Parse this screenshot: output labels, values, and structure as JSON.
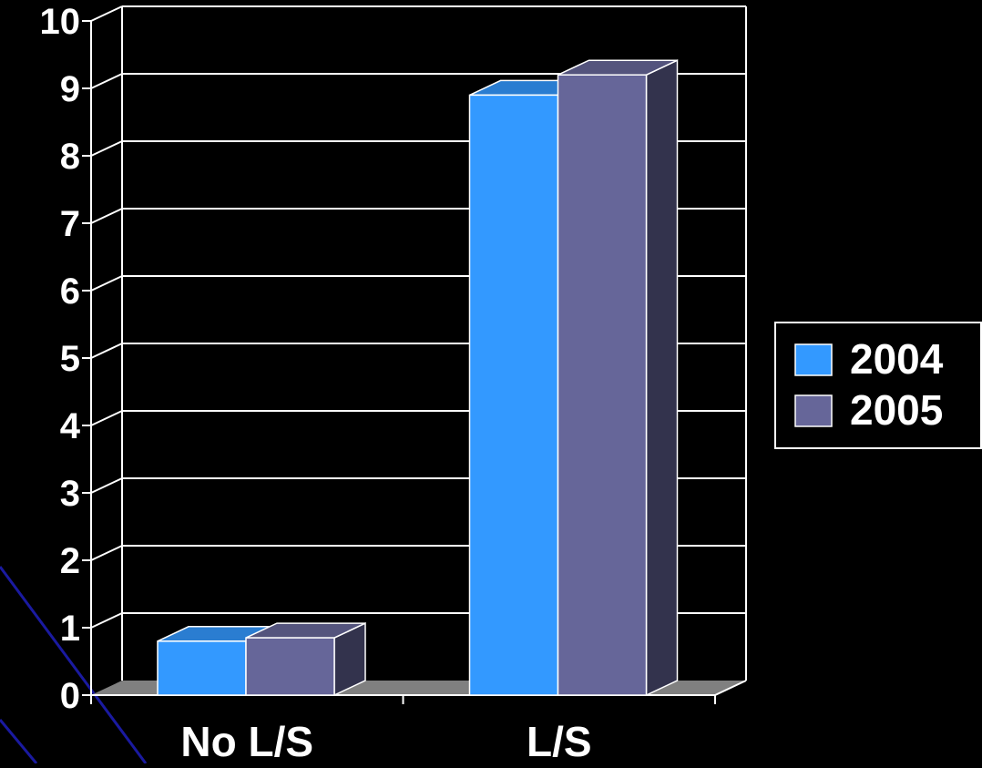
{
  "chart_data": {
    "type": "bar",
    "categories": [
      "No L/S",
      "L/S"
    ],
    "series": [
      {
        "name": "2004",
        "values": [
          0.8,
          8.9
        ],
        "color": "#3399FF"
      },
      {
        "name": "2005",
        "values": [
          0.85,
          9.2
        ],
        "color": "#666699"
      }
    ],
    "ylim": [
      0,
      10
    ],
    "yticks": [
      "0",
      "1",
      "2",
      "3",
      "4",
      "5",
      "6",
      "7",
      "8",
      "9",
      "10"
    ],
    "grid": true,
    "legend_position": "right",
    "style": "3d-column",
    "background_color": "#000000",
    "gridline_color": "#ffffff",
    "floor_color": "#808080"
  }
}
